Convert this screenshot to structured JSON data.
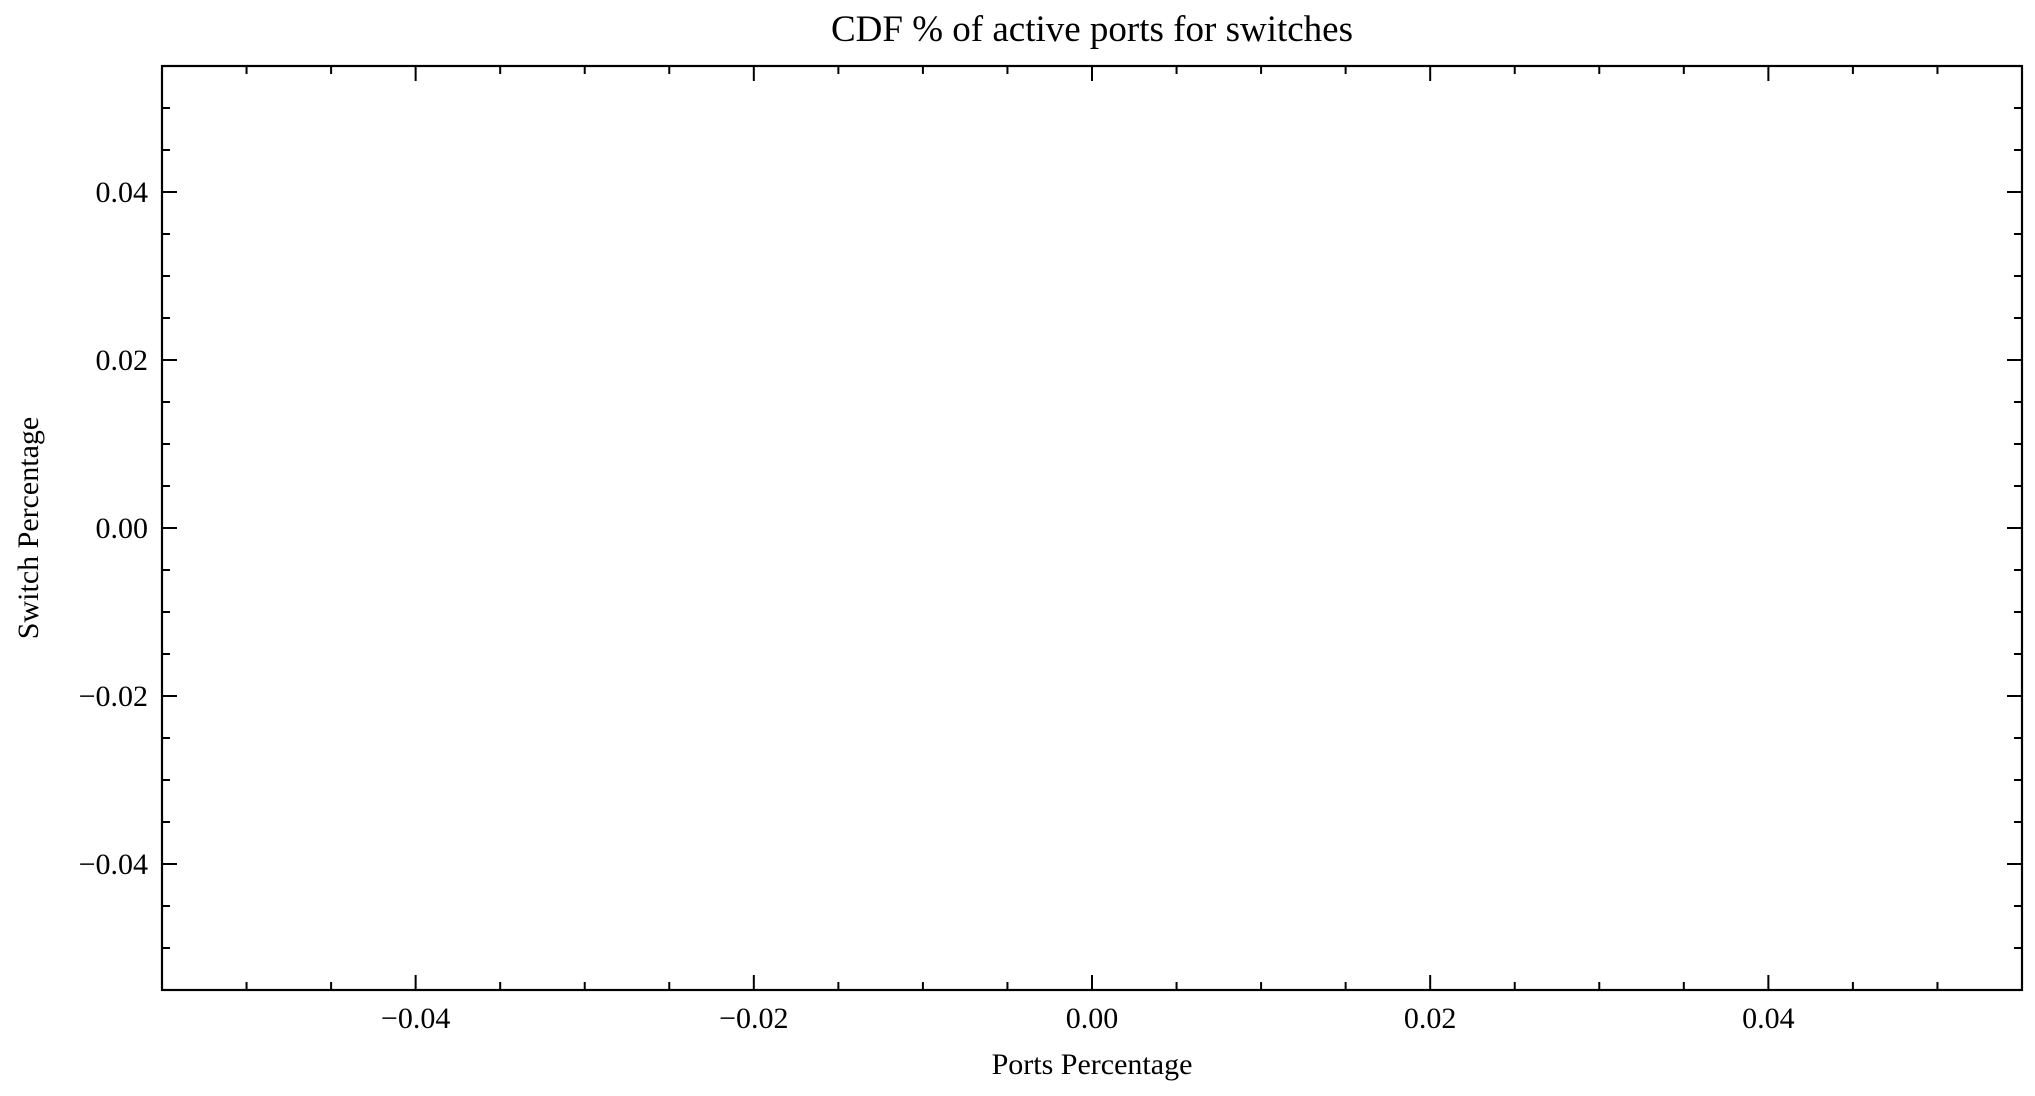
{
  "chart_data": {
    "type": "line",
    "title": "CDF % of active ports for switches",
    "xlabel": "Ports Percentage",
    "ylabel": "Switch Percentage",
    "xlim": [
      -0.055,
      0.055
    ],
    "ylim": [
      -0.055,
      0.055
    ],
    "x_ticks": [
      -0.04,
      -0.02,
      0.0,
      0.02,
      0.04
    ],
    "x_tick_labels": [
      "−0.04",
      "−0.02",
      "0.00",
      "0.02",
      "0.04"
    ],
    "y_ticks": [
      -0.04,
      -0.02,
      0.0,
      0.02,
      0.04
    ],
    "y_tick_labels": [
      "−0.04",
      "−0.02",
      "0.00",
      "0.02",
      "0.04"
    ],
    "minor_tick_step": 0.005,
    "grid": false,
    "legend": "none",
    "series": []
  }
}
